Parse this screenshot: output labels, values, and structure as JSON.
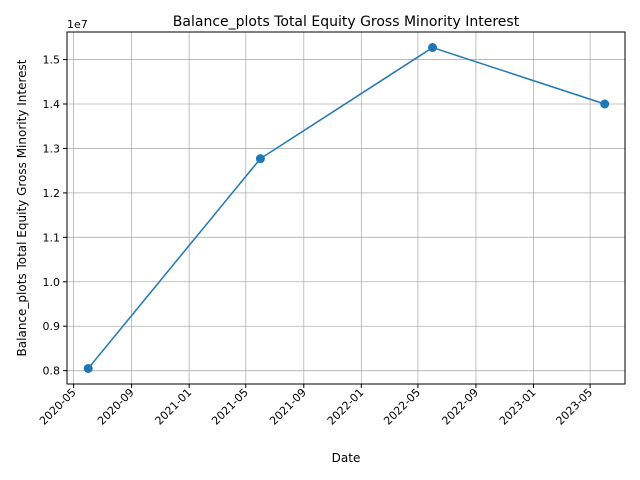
{
  "chart_data": {
    "type": "line",
    "title": "Balance_plots Total Equity Gross Minority Interest",
    "xlabel": "Date",
    "ylabel": "Balance_plots Total Equity Gross Minority Interest",
    "y_offset_label": "1e7",
    "y_scale_divisor": 10000000,
    "grid": true,
    "color": "#1f77b4",
    "x_ticks": [
      "2020-05",
      "2020-09",
      "2021-01",
      "2021-05",
      "2021-09",
      "2022-01",
      "2022-05",
      "2022-09",
      "2023-01",
      "2023-05"
    ],
    "y_ticks": [
      0.8,
      0.9,
      1.0,
      1.1,
      1.2,
      1.3,
      1.4,
      1.5
    ],
    "xlim": [
      "2020-04-17",
      "2023-07-14"
    ],
    "ylim": [
      7700000,
      15620000
    ],
    "series": [
      {
        "x": [
          "2020-06-01",
          "2021-06-01",
          "2022-06-01",
          "2023-06-01"
        ],
        "values": [
          8050000,
          12770000,
          15270000,
          14000000
        ]
      }
    ]
  }
}
